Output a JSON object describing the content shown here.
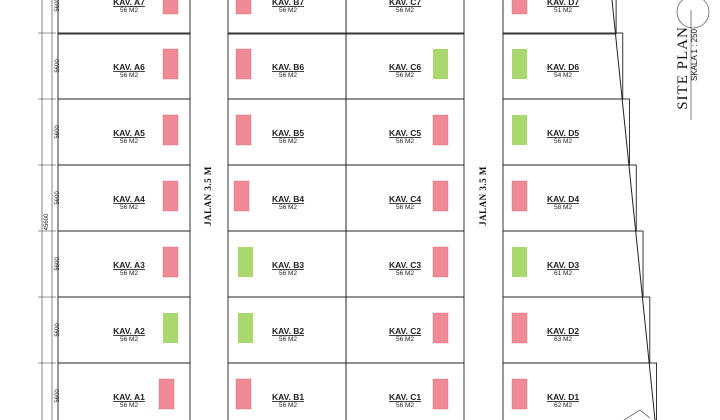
{
  "plan": {
    "title": "SITE PLAN",
    "scale": "SKALA 1 : 250",
    "roads": [
      "JALAN 3.5 M",
      "JALAN 3.5 M"
    ],
    "total_dimension": "45600",
    "row_dimensions": [
      "5600",
      "5600",
      "5600",
      "5600",
      "5600",
      "5600"
    ],
    "colors": {
      "red": "#f08a96",
      "green": "#a9d86e"
    },
    "blocks": [
      {
        "block": "A",
        "lots": [
          {
            "name": "KAV. A7",
            "area": "56 M2",
            "marker": "red"
          },
          {
            "name": "KAV. A6",
            "area": "56 M2",
            "marker": "red"
          },
          {
            "name": "KAV. A5",
            "area": "56 M2",
            "marker": "red"
          },
          {
            "name": "KAV. A4",
            "area": "56 M2",
            "marker": "red"
          },
          {
            "name": "KAV. A3",
            "area": "56 M2",
            "marker": "red"
          },
          {
            "name": "KAV. A2",
            "area": "56 M2",
            "marker": "green"
          },
          {
            "name": "KAV. A1",
            "area": "56 M2",
            "marker": "red"
          }
        ]
      },
      {
        "block": "B",
        "lots": [
          {
            "name": "KAV. B7",
            "area": "56 M2",
            "marker": "red"
          },
          {
            "name": "KAV. B6",
            "area": "56 M2",
            "marker": "red"
          },
          {
            "name": "KAV. B5",
            "area": "56 M2",
            "marker": "red"
          },
          {
            "name": "KAV. B4",
            "area": "56 M2",
            "marker": "red"
          },
          {
            "name": "KAV. B3",
            "area": "56 M2",
            "marker": "green"
          },
          {
            "name": "KAV. B2",
            "area": "56 M2",
            "marker": "green"
          },
          {
            "name": "KAV. B1",
            "area": "56 M2",
            "marker": "red"
          }
        ]
      },
      {
        "block": "C",
        "lots": [
          {
            "name": "KAV. C7",
            "area": "56 M2",
            "marker": "none"
          },
          {
            "name": "KAV. C6",
            "area": "56 M2",
            "marker": "green"
          },
          {
            "name": "KAV. C5",
            "area": "56 M2",
            "marker": "red"
          },
          {
            "name": "KAV. C4",
            "area": "56 M2",
            "marker": "red"
          },
          {
            "name": "KAV. C3",
            "area": "56 M2",
            "marker": "red"
          },
          {
            "name": "KAV. C2",
            "area": "56 M2",
            "marker": "red"
          },
          {
            "name": "KAV. C1",
            "area": "56 M2",
            "marker": "red"
          }
        ]
      },
      {
        "block": "D",
        "lots": [
          {
            "name": "KAV. D7",
            "area": "51 M2",
            "marker": "red"
          },
          {
            "name": "KAV. D6",
            "area": "54 M2",
            "marker": "green"
          },
          {
            "name": "KAV. D5",
            "area": "56 M2",
            "marker": "green"
          },
          {
            "name": "KAV. D4",
            "area": "58 M2",
            "marker": "red"
          },
          {
            "name": "KAV. D3",
            "area": "61 M2",
            "marker": "green"
          },
          {
            "name": "KAV. D2",
            "area": "63 M2",
            "marker": "red"
          },
          {
            "name": "KAV. D1",
            "area": "62 M2",
            "marker": "red"
          }
        ]
      }
    ]
  }
}
